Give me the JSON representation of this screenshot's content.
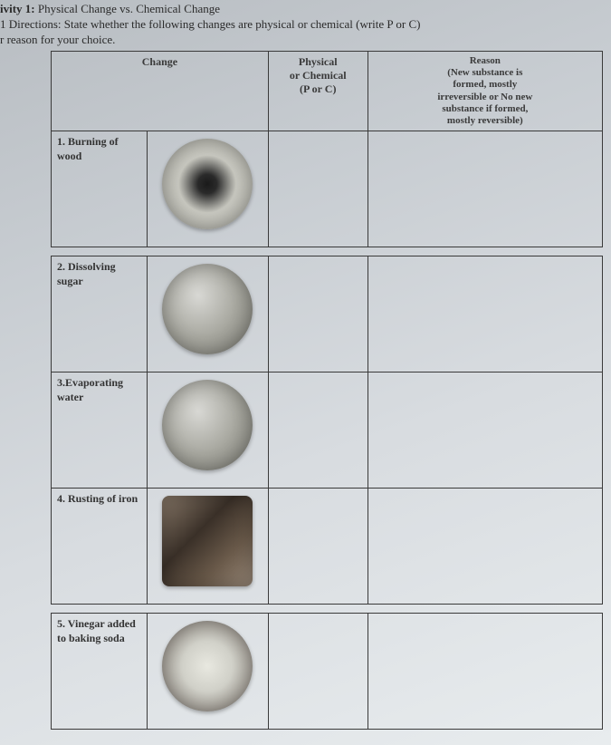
{
  "title_prefix": "ivity 1:",
  "title_text": " Physical Change vs. Chemical Change",
  "directions_prefix": "1",
  "directions_label": "  Directions: ",
  "directions_text": "State whether the following changes are physical or chemical (write P or C)",
  "reason_line": "r reason for your choice.",
  "headers": {
    "change": "Change",
    "porc_line1": "Physical",
    "porc_line2": "or Chemical",
    "porc_line3": "(P or C)",
    "reason_line1": "Reason",
    "reason_line2": "(New substance is",
    "reason_line3": "formed, mostly",
    "reason_line4": "irreversible or No new",
    "reason_line5": "substance if formed,",
    "reason_line6": "mostly reversible)"
  },
  "rows": [
    {
      "label": "1. Burning of wood"
    },
    {
      "label": "2. Dissolving sugar"
    },
    {
      "label": "3.Evaporating water"
    },
    {
      "label": "4. Rusting of iron"
    },
    {
      "label": "5. Vinegar added to baking soda"
    }
  ]
}
